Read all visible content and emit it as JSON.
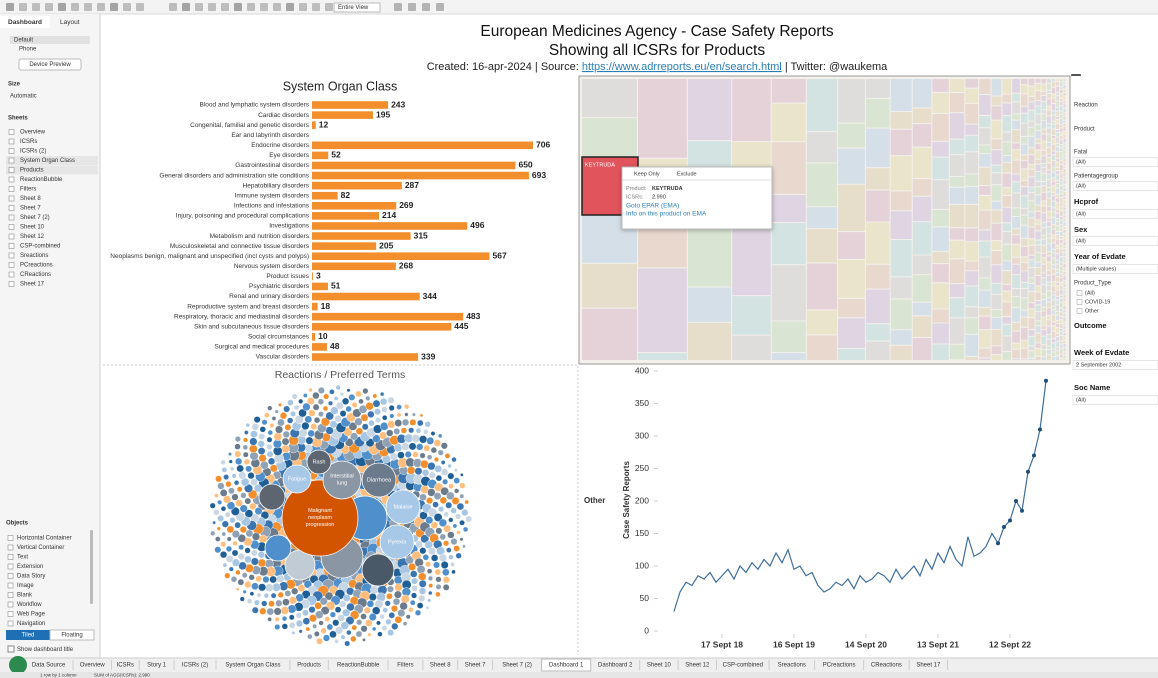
{
  "toolbar": {
    "fit": "Entire View"
  },
  "left_panel": {
    "tabs": [
      "Dashboard",
      "Layout"
    ],
    "devices": [
      "Default",
      "Phone"
    ],
    "device_preview": "Device Preview",
    "size_label": "Size",
    "size_value": "Automatic",
    "sheets_label": "Sheets",
    "sheets": [
      "Overview",
      "ICSRs",
      "ICSRs (2)",
      "System Organ Class",
      "Products",
      "ReactionBubble",
      "Filters",
      "Sheet 8",
      "Sheet 7",
      "Sheet 7 (2)",
      "Sheet 10",
      "Sheet 12",
      "CSP-combined",
      "Sreactions",
      "PCreactions",
      "CReactions",
      "Sheet 17"
    ],
    "objects_label": "Objects",
    "objects": [
      "Horizontal Container",
      "Vertical Container",
      "Text",
      "Extension",
      "Data Story",
      "Image",
      "Blank",
      "Workflow",
      "Web Page",
      "Navigation"
    ],
    "tiled": "Tiled",
    "floating": "Floating",
    "show_title": "Show dashboard title"
  },
  "header": {
    "title": "European Medicines Agency - Case Safety Reports",
    "subtitle": "Showing all ICSRs for Products",
    "created": "Created: 16-apr-2024 | Source: ",
    "link": "https://www.adrreports.eu/en/search.html",
    "twitter": " | Twitter: @waukema"
  },
  "chart_data": [
    {
      "type": "bar",
      "orientation": "horizontal",
      "title": "System Organ Class",
      "color": "#f28e2b",
      "categories": [
        "Blood and lymphatic system disorders",
        "Cardiac disorders",
        "Congenital, familial and genetic disorders",
        "Ear and labyrinth disorders",
        "Endocrine disorders",
        "Eye disorders",
        "Gastrointestinal disorders",
        "General disorders and administration site conditions",
        "Hepatobiliary disorders",
        "Immune system disorders",
        "Infections and infestations",
        "Injury, poisoning and procedural complications",
        "Investigations",
        "Metabolism and nutrition disorders",
        "Musculoskeletal and connective tissue disorders",
        "Neoplasms benign, malignant and unspecified (incl cysts and polyps)",
        "Nervous system disorders",
        "Product issues",
        "Psychiatric disorders",
        "Renal and urinary disorders",
        "Reproductive system and breast disorders",
        "Respiratory, thoracic and mediastinal disorders",
        "Skin and subcutaneous tissue disorders",
        "Social circumstances",
        "Surgical and medical procedures",
        "Vascular disorders"
      ],
      "values": [
        243,
        195,
        12,
        null,
        706,
        52,
        650,
        693,
        287,
        82,
        269,
        214,
        496,
        315,
        205,
        567,
        268,
        3,
        51,
        344,
        18,
        483,
        445,
        10,
        48,
        339
      ]
    },
    {
      "type": "line",
      "ylabel": "Case Safety Reports",
      "row_label": "Other",
      "color": "#3e6f9c",
      "categories": [
        null,
        null,
        null,
        null,
        null,
        null,
        null,
        null,
        "17 Sept 18",
        null,
        null,
        null,
        null,
        null,
        null,
        null,
        null,
        null,
        null,
        null,
        "16 Sept 19",
        null,
        null,
        null,
        null,
        null,
        null,
        null,
        null,
        null,
        null,
        null,
        "14 Sept 20",
        null,
        null,
        null,
        null,
        null,
        null,
        null,
        null,
        null,
        null,
        null,
        "13 Sept 21",
        null,
        null,
        null,
        null,
        null,
        null,
        null,
        null,
        null,
        null,
        null,
        "12 Sept 22",
        null,
        null,
        null,
        null,
        null,
        null
      ],
      "values": [
        30,
        60,
        75,
        70,
        85,
        80,
        90,
        75,
        85,
        95,
        80,
        100,
        90,
        105,
        95,
        110,
        100,
        120,
        105,
        125,
        95,
        100,
        85,
        90,
        70,
        60,
        65,
        75,
        70,
        80,
        65,
        85,
        75,
        80,
        90,
        85,
        75,
        95,
        80,
        90,
        100,
        85,
        110,
        95,
        120,
        105,
        130,
        110,
        100,
        145,
        115,
        120,
        130,
        150,
        135,
        160,
        170,
        200,
        185,
        245,
        270,
        310,
        385
      ],
      "ylim": [
        0,
        400
      ],
      "yticks": [
        0,
        50,
        100,
        150,
        200,
        250,
        300,
        350,
        400
      ]
    }
  ],
  "treemap": {
    "selected": "KEYTRUDA"
  },
  "tooltip": {
    "keep_only": "Keep Only",
    "exclude": "Exclude",
    "product_label": "Product:",
    "product": "KEYTRUDA",
    "icsrs_label": "ICSRs:",
    "icsrs": "2.990",
    "link1": "Goto EPAR (EMA)",
    "link2": "Info on this product on EMA"
  },
  "bubbles": {
    "title": "Reactions / Preferred Terms",
    "labels": [
      "Malignant neoplasm progression",
      "Interstitial lung",
      "Diarrhoea",
      "Rash",
      "Fatigue",
      "Malaise",
      "Pyrexia"
    ]
  },
  "filters": [
    {
      "label": "Reaction"
    },
    {
      "label": "Product"
    },
    {
      "label": "Fatal",
      "value": "(All)"
    },
    {
      "label": "Patientagegroup",
      "value": "(All)"
    },
    {
      "label": "Hcprof",
      "value": "(All)"
    },
    {
      "label": "Sex",
      "value": "(All)"
    },
    {
      "label": "Year of Evdate",
      "value": "(Multiple values)"
    },
    {
      "label": "Product_Type",
      "options": [
        "(All)",
        "COVID-19",
        "Other"
      ]
    },
    {
      "label": "Outcome"
    },
    {
      "label": "Week of Evdate",
      "value": "2 September 2002"
    },
    {
      "label": "Soc Name",
      "value": "(All)"
    }
  ],
  "bottom_tabs": [
    "Data Source",
    "Overview",
    "ICSRs",
    "Story 1",
    "ICSRs (2)",
    "System Organ Class",
    "Products",
    "ReactionBubble",
    "Filters",
    "Sheet 8",
    "Sheet 7",
    "Sheet 7 (2)",
    "Dashboard 1",
    "Dashboard 2",
    "Sheet 10",
    "Sheet 12",
    "CSP-combined",
    "Sreactions",
    "PCreactions",
    "CReactions",
    "Sheet 17"
  ],
  "status": {
    "layout": "1 row by 1 column",
    "sum": "SUM of AGG(ICSRs): 2.990"
  }
}
